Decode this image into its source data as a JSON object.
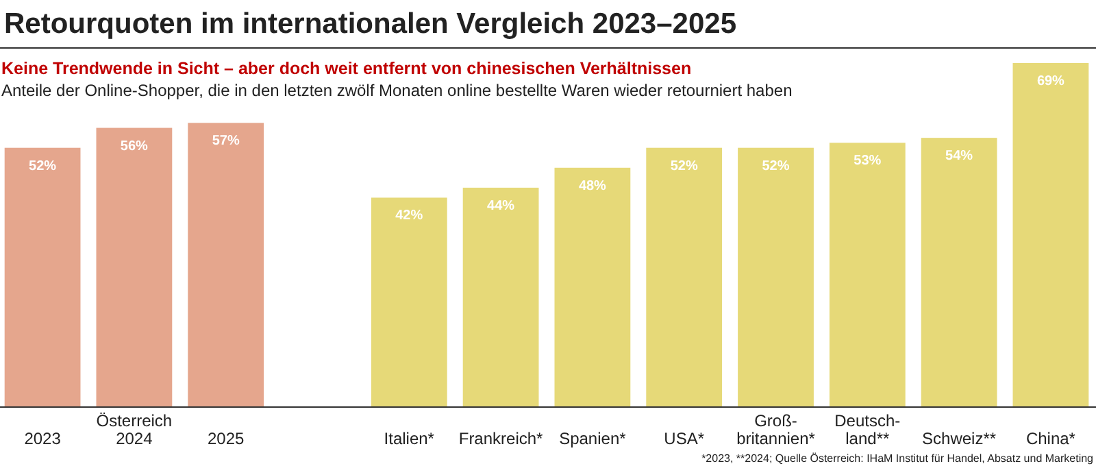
{
  "chart_data": {
    "type": "bar",
    "title": "Retourquoten im internationalen Vergleich 2023–2025",
    "subtitle": "Keine Trendwende in Sicht – aber doch weit entfernt von chinesischen Verhältnissen",
    "annotations": [
      "Anteile der Online-Shopper, die in den letzten zwölf Monaten online bestellte Waren wieder retourniert haben",
      "*2023, **2024; Quelle Österreich: IHaM Institut für Handel, Absatz und Marketing"
    ],
    "categories": [
      "2023",
      "Österreich\n2024",
      "2025",
      null,
      "Italien*",
      "Frankreich*",
      "Spanien*",
      "USA*",
      "Groß-\nbritannien*",
      "Deutsch-\nland**",
      "Schweiz**",
      "China*"
    ],
    "values": [
      52,
      56,
      57,
      null,
      42,
      44,
      48,
      52,
      52,
      53,
      54,
      69
    ],
    "value_labels": [
      "52%",
      "56%",
      "57%",
      null,
      "42%",
      "44%",
      "48%",
      "52%",
      "52%",
      "53%",
      "54%",
      "69%"
    ],
    "colors": [
      "#e5a68d",
      "#e5a68d",
      "#e5a68d",
      null,
      "#e6d978",
      "#e6d978",
      "#e6d978",
      "#e6d978",
      "#e6d978",
      "#e6d978",
      "#e6d978",
      "#e6d978"
    ],
    "orientation": "vertical"
  }
}
